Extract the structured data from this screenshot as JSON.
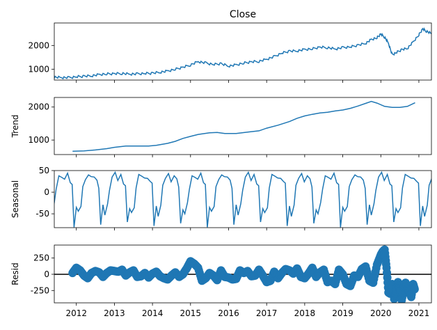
{
  "chart_data": [
    {
      "type": "line",
      "title": "Close",
      "ylabel": "",
      "xlim": [
        2011.42,
        2021.33
      ],
      "ylim": [
        540,
        2950
      ],
      "yticks": [
        1000,
        2000
      ],
      "grid": false,
      "series": [
        {
          "name": "",
          "color": "#1f77b4",
          "x": [
            2011.42,
            2011.6,
            2011.8,
            2012.0,
            2012.2,
            2012.4,
            2012.6,
            2012.8,
            2013.0,
            2013.2,
            2013.4,
            2013.6,
            2013.8,
            2014.0,
            2014.2,
            2014.4,
            2014.6,
            2014.8,
            2015.0,
            2015.2,
            2015.4,
            2015.6,
            2015.8,
            2016.0,
            2016.2,
            2016.4,
            2016.6,
            2016.8,
            2017.0,
            2017.2,
            2017.4,
            2017.6,
            2017.8,
            2018.0,
            2018.2,
            2018.4,
            2018.6,
            2018.8,
            2019.0,
            2019.2,
            2019.4,
            2019.6,
            2019.75,
            2019.9,
            2020.0,
            2020.1,
            2020.2,
            2020.3,
            2020.4,
            2020.55,
            2020.7,
            2020.85,
            2021.0,
            2021.1,
            2021.2,
            2021.33
          ],
          "values": [
            660,
            650,
            640,
            680,
            700,
            720,
            770,
            800,
            810,
            820,
            790,
            800,
            820,
            830,
            870,
            920,
            1000,
            1080,
            1180,
            1320,
            1260,
            1200,
            1230,
            1130,
            1180,
            1260,
            1310,
            1330,
            1420,
            1530,
            1680,
            1760,
            1770,
            1830,
            1860,
            1930,
            1910,
            1850,
            1910,
            1940,
            2010,
            2090,
            2250,
            2330,
            2480,
            2350,
            2100,
            1600,
            1700,
            1820,
            1880,
            2150,
            2450,
            2700,
            2600,
            2500
          ]
        }
      ]
    },
    {
      "type": "line",
      "title": "",
      "ylabel": "Trend",
      "xlim": [
        2011.42,
        2021.33
      ],
      "ylim": [
        560,
        2290
      ],
      "yticks": [
        1000,
        2000
      ],
      "grid": false,
      "series": [
        {
          "name": "",
          "color": "#1f77b4",
          "x": [
            2011.9,
            2012.2,
            2012.5,
            2012.8,
            2013.0,
            2013.3,
            2013.6,
            2013.9,
            2014.1,
            2014.4,
            2014.6,
            2014.8,
            2015.0,
            2015.2,
            2015.5,
            2015.7,
            2015.9,
            2016.2,
            2016.5,
            2016.8,
            2017.0,
            2017.3,
            2017.6,
            2017.8,
            2018.0,
            2018.2,
            2018.4,
            2018.6,
            2018.8,
            2019.0,
            2019.2,
            2019.4,
            2019.6,
            2019.75,
            2019.9,
            2020.1,
            2020.3,
            2020.5,
            2020.7,
            2020.9
          ],
          "values": [
            660,
            670,
            700,
            740,
            780,
            820,
            820,
            820,
            840,
            900,
            960,
            1050,
            1110,
            1170,
            1220,
            1230,
            1200,
            1200,
            1240,
            1280,
            1360,
            1450,
            1560,
            1660,
            1730,
            1780,
            1820,
            1840,
            1880,
            1910,
            1960,
            2030,
            2110,
            2170,
            2120,
            2020,
            1990,
            1990,
            2020,
            2130
          ]
        }
      ]
    },
    {
      "type": "line",
      "title": "",
      "ylabel": "Seasonal",
      "xlim": [
        2011.42,
        2021.33
      ],
      "ylim": [
        -82,
        50
      ],
      "yticks": [
        -50,
        0,
        50
      ],
      "grid": false,
      "period_years": 0.7,
      "series": [
        {
          "name": "",
          "color": "#1f77b4",
          "x": [
            0.0,
            0.05,
            0.12,
            0.2,
            0.27,
            0.35,
            0.42,
            0.47,
            0.52,
            0.58,
            0.63,
            0.7
          ],
          "values": [
            -30,
            10,
            35,
            40,
            30,
            38,
            25,
            15,
            -75,
            -35,
            -50,
            -30
          ]
        }
      ]
    },
    {
      "type": "scatter",
      "title": "",
      "ylabel": "Resid",
      "xlim": [
        2011.42,
        2021.33
      ],
      "ylim": [
        -440,
        450
      ],
      "yticks": [
        -250,
        0,
        250
      ],
      "grid": false,
      "zero_line": true,
      "series": [
        {
          "name": "",
          "color": "#1f77b4",
          "x": [
            2011.9,
            2012.0,
            2012.1,
            2012.2,
            2012.3,
            2012.4,
            2012.5,
            2012.6,
            2012.7,
            2012.8,
            2012.9,
            2013.0,
            2013.1,
            2013.2,
            2013.3,
            2013.4,
            2013.5,
            2013.6,
            2013.7,
            2013.8,
            2013.9,
            2014.0,
            2014.1,
            2014.2,
            2014.3,
            2014.4,
            2014.5,
            2014.6,
            2014.7,
            2014.8,
            2014.9,
            2015.0,
            2015.1,
            2015.2,
            2015.3,
            2015.4,
            2015.5,
            2015.6,
            2015.7,
            2015.8,
            2015.9,
            2016.0,
            2016.1,
            2016.2,
            2016.3,
            2016.4,
            2016.5,
            2016.6,
            2016.7,
            2016.8,
            2016.9,
            2017.0,
            2017.1,
            2017.2,
            2017.3,
            2017.4,
            2017.5,
            2017.6,
            2017.7,
            2017.8,
            2017.9,
            2018.0,
            2018.1,
            2018.2,
            2018.3,
            2018.4,
            2018.5,
            2018.6,
            2018.7,
            2018.8,
            2018.9,
            2019.0,
            2019.1,
            2019.2,
            2019.3,
            2019.4,
            2019.5,
            2019.6,
            2019.7,
            2019.8,
            2019.9,
            2020.0,
            2020.05,
            2020.1,
            2020.15,
            2020.2,
            2020.25,
            2020.3,
            2020.35,
            2020.4,
            2020.45,
            2020.5,
            2020.55,
            2020.6,
            2020.65,
            2020.7,
            2020.75,
            2020.8,
            2020.85,
            2020.9
          ],
          "values": [
            20,
            100,
            60,
            -20,
            -60,
            20,
            50,
            30,
            -40,
            20,
            60,
            50,
            40,
            70,
            -20,
            30,
            60,
            -40,
            -30,
            20,
            -50,
            10,
            40,
            -30,
            -60,
            -80,
            -20,
            30,
            -40,
            0,
            90,
            200,
            160,
            100,
            -100,
            -60,
            20,
            -20,
            -90,
            60,
            -40,
            -50,
            -80,
            -70,
            60,
            20,
            50,
            -30,
            -20,
            70,
            -20,
            -120,
            -100,
            40,
            -60,
            20,
            80,
            60,
            10,
            90,
            -40,
            -60,
            10,
            100,
            -40,
            30,
            70,
            -120,
            -100,
            -150,
            70,
            0,
            -150,
            -180,
            -20,
            -40,
            80,
            120,
            -100,
            -130,
            150,
            300,
            350,
            380,
            100,
            -280,
            -300,
            -150,
            -380,
            -300,
            -120,
            -220,
            -400,
            -200,
            -130,
            -220,
            -280,
            -350,
            -150,
            -250
          ]
        }
      ]
    }
  ],
  "xaxis": {
    "ticks": [
      2012,
      2013,
      2014,
      2015,
      2016,
      2017,
      2018,
      2019,
      2020,
      2021
    ],
    "labels": [
      "2012",
      "2013",
      "2014",
      "2015",
      "2016",
      "2017",
      "2018",
      "2019",
      "2020",
      "2021"
    ]
  }
}
